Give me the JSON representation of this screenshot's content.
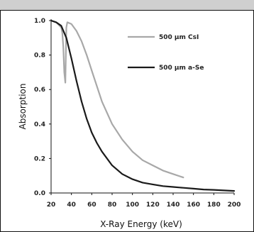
{
  "chart_data": {
    "type": "line",
    "title": "",
    "xlabel": "X-Ray Energy (keV)",
    "ylabel": "Absorption",
    "xlim": [
      20,
      200
    ],
    "ylim": [
      0,
      1.0
    ],
    "xticks": [
      "20",
      "40",
      "60",
      "80",
      "100",
      "120",
      "140",
      "160",
      "180",
      "200"
    ],
    "yticks": [
      "0.0",
      "0.2",
      "0.4",
      "0.6",
      "0.8",
      "1.0"
    ],
    "grid": false,
    "legend_position": "top-right",
    "series": [
      {
        "name": "500 µm CsI",
        "color": "#a8a8a8",
        "x": [
          20,
          25,
          30,
          31,
          32,
          33,
          34,
          35,
          36,
          40,
          45,
          50,
          55,
          60,
          65,
          70,
          80,
          90,
          100,
          110,
          120,
          130,
          140,
          150
        ],
        "y": [
          1.0,
          0.99,
          0.96,
          0.93,
          0.85,
          0.7,
          0.64,
          0.96,
          0.99,
          0.98,
          0.94,
          0.88,
          0.8,
          0.71,
          0.62,
          0.53,
          0.4,
          0.31,
          0.24,
          0.19,
          0.16,
          0.13,
          0.11,
          0.09
        ]
      },
      {
        "name": "500 µm a-Se",
        "color": "#1a1a1a",
        "x": [
          20,
          25,
          30,
          35,
          40,
          45,
          50,
          55,
          60,
          65,
          70,
          80,
          90,
          100,
          110,
          120,
          130,
          140,
          150,
          160,
          170,
          180,
          190,
          200
        ],
        "y": [
          1.0,
          0.99,
          0.97,
          0.9,
          0.78,
          0.65,
          0.53,
          0.43,
          0.35,
          0.29,
          0.24,
          0.16,
          0.11,
          0.08,
          0.06,
          0.05,
          0.04,
          0.035,
          0.03,
          0.025,
          0.02,
          0.018,
          0.015,
          0.012
        ]
      }
    ]
  }
}
